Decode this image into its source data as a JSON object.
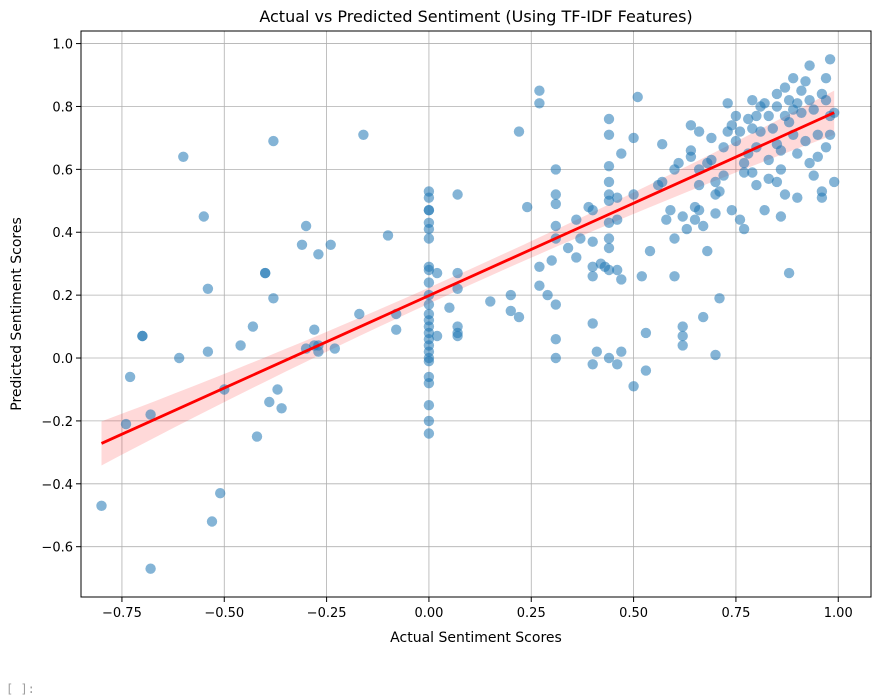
{
  "cell": {
    "prompt": "[ ]:"
  },
  "chart_data": {
    "type": "scatter",
    "title": "Actual vs Predicted Sentiment (Using TF-IDF Features)",
    "xlabel": "Actual Sentiment Scores",
    "ylabel": "Predicted Sentiment Scores",
    "xlim": [
      -0.85,
      1.08
    ],
    "ylim": [
      -0.76,
      1.04
    ],
    "xticks": [
      -0.75,
      -0.5,
      -0.25,
      0.0,
      0.25,
      0.5,
      0.75,
      1.0
    ],
    "xtick_labels": [
      "−0.75",
      "−0.50",
      "−0.25",
      "0.00",
      "0.25",
      "0.50",
      "0.75",
      "1.00"
    ],
    "yticks": [
      -0.6,
      -0.4,
      -0.2,
      0.0,
      0.2,
      0.4,
      0.6,
      0.8,
      1.0
    ],
    "ytick_labels": [
      "−0.6",
      "−0.4",
      "−0.2",
      "0.0",
      "0.2",
      "0.4",
      "0.6",
      "0.8",
      "1.0"
    ],
    "grid": true,
    "colors": {
      "points": "#1f77b4",
      "regression": "#ff0000",
      "band": "#ff0000"
    },
    "regression": {
      "slope": 0.5877,
      "intercept": 0.1985,
      "x_range": [
        -0.8,
        0.99
      ],
      "ci_half_width_ends": 0.07,
      "ci_half_width_center": 0.025
    },
    "points": [
      [
        -0.8,
        -0.47
      ],
      [
        -0.74,
        -0.21
      ],
      [
        -0.73,
        -0.06
      ],
      [
        -0.7,
        0.07
      ],
      [
        -0.7,
        0.07
      ],
      [
        -0.68,
        -0.18
      ],
      [
        -0.68,
        -0.67
      ],
      [
        -0.6,
        0.64
      ],
      [
        -0.61,
        0.0
      ],
      [
        -0.55,
        0.45
      ],
      [
        -0.54,
        0.22
      ],
      [
        -0.54,
        0.02
      ],
      [
        -0.51,
        -0.43
      ],
      [
        -0.53,
        -0.52
      ],
      [
        -0.5,
        -0.1
      ],
      [
        -0.46,
        0.04
      ],
      [
        -0.43,
        0.1
      ],
      [
        -0.42,
        -0.25
      ],
      [
        -0.4,
        0.27
      ],
      [
        -0.4,
        0.27
      ],
      [
        -0.39,
        -0.14
      ],
      [
        -0.38,
        0.19
      ],
      [
        -0.37,
        -0.1
      ],
      [
        -0.36,
        -0.16
      ],
      [
        -0.38,
        0.69
      ],
      [
        -0.31,
        0.36
      ],
      [
        -0.3,
        0.42
      ],
      [
        -0.3,
        0.03
      ],
      [
        -0.28,
        0.09
      ],
      [
        -0.27,
        0.02
      ],
      [
        -0.27,
        0.04
      ],
      [
        -0.28,
        0.04
      ],
      [
        -0.24,
        0.36
      ],
      [
        -0.23,
        0.03
      ],
      [
        -0.27,
        0.33
      ],
      [
        -0.17,
        0.14
      ],
      [
        -0.16,
        0.71
      ],
      [
        -0.1,
        0.39
      ],
      [
        -0.08,
        0.14
      ],
      [
        -0.08,
        0.09
      ],
      [
        0.0,
        0.53
      ],
      [
        0.0,
        0.51
      ],
      [
        0.0,
        0.47
      ],
      [
        0.0,
        0.47
      ],
      [
        0.0,
        0.43
      ],
      [
        0.0,
        0.41
      ],
      [
        0.0,
        0.38
      ],
      [
        0.0,
        0.29
      ],
      [
        0.0,
        0.28
      ],
      [
        0.0,
        0.24
      ],
      [
        0.0,
        0.2
      ],
      [
        0.0,
        0.17
      ],
      [
        0.0,
        0.14
      ],
      [
        0.0,
        0.12
      ],
      [
        0.0,
        0.1
      ],
      [
        0.0,
        0.08
      ],
      [
        0.0,
        0.06
      ],
      [
        0.0,
        0.04
      ],
      [
        0.0,
        0.02
      ],
      [
        0.0,
        0.0
      ],
      [
        0.0,
        -0.01
      ],
      [
        0.0,
        -0.06
      ],
      [
        0.0,
        -0.08
      ],
      [
        0.0,
        -0.15
      ],
      [
        0.0,
        -0.2
      ],
      [
        0.0,
        -0.24
      ],
      [
        0.02,
        0.07
      ],
      [
        0.02,
        0.27
      ],
      [
        0.05,
        0.16
      ],
      [
        0.07,
        0.52
      ],
      [
        0.07,
        0.27
      ],
      [
        0.07,
        0.22
      ],
      [
        0.07,
        0.1
      ],
      [
        0.07,
        0.08
      ],
      [
        0.07,
        0.07
      ],
      [
        0.15,
        0.18
      ],
      [
        0.2,
        0.2
      ],
      [
        0.2,
        0.15
      ],
      [
        0.22,
        0.13
      ],
      [
        0.24,
        0.48
      ],
      [
        0.22,
        0.72
      ],
      [
        0.27,
        0.85
      ],
      [
        0.27,
        0.81
      ],
      [
        0.27,
        0.29
      ],
      [
        0.27,
        0.23
      ],
      [
        0.29,
        0.2
      ],
      [
        0.3,
        0.31
      ],
      [
        0.31,
        0.6
      ],
      [
        0.31,
        0.52
      ],
      [
        0.31,
        0.49
      ],
      [
        0.31,
        0.42
      ],
      [
        0.31,
        0.38
      ],
      [
        0.31,
        0.17
      ],
      [
        0.31,
        0.06
      ],
      [
        0.31,
        0.0
      ],
      [
        0.34,
        0.35
      ],
      [
        0.36,
        0.32
      ],
      [
        0.37,
        0.38
      ],
      [
        0.36,
        0.44
      ],
      [
        0.39,
        0.48
      ],
      [
        0.4,
        0.47
      ],
      [
        0.4,
        0.37
      ],
      [
        0.4,
        0.29
      ],
      [
        0.4,
        0.26
      ],
      [
        0.4,
        0.11
      ],
      [
        0.41,
        0.02
      ],
      [
        0.4,
        -0.02
      ],
      [
        0.42,
        0.3
      ],
      [
        0.43,
        0.29
      ],
      [
        0.44,
        0.76
      ],
      [
        0.44,
        0.71
      ],
      [
        0.44,
        0.61
      ],
      [
        0.44,
        0.56
      ],
      [
        0.44,
        0.52
      ],
      [
        0.44,
        0.5
      ],
      [
        0.44,
        0.43
      ],
      [
        0.44,
        0.38
      ],
      [
        0.44,
        0.35
      ],
      [
        0.44,
        0.28
      ],
      [
        0.44,
        0.0
      ],
      [
        0.46,
        0.51
      ],
      [
        0.46,
        0.44
      ],
      [
        0.46,
        0.28
      ],
      [
        0.46,
        -0.02
      ],
      [
        0.47,
        0.25
      ],
      [
        0.47,
        0.65
      ],
      [
        0.47,
        0.02
      ],
      [
        0.5,
        0.7
      ],
      [
        0.5,
        0.52
      ],
      [
        0.51,
        0.83
      ],
      [
        0.5,
        -0.09
      ],
      [
        0.52,
        0.26
      ],
      [
        0.53,
        0.08
      ],
      [
        0.53,
        -0.04
      ],
      [
        0.54,
        0.34
      ],
      [
        0.56,
        0.55
      ],
      [
        0.57,
        0.56
      ],
      [
        0.57,
        0.68
      ],
      [
        0.58,
        0.44
      ],
      [
        0.59,
        0.47
      ],
      [
        0.6,
        0.6
      ],
      [
        0.6,
        0.38
      ],
      [
        0.6,
        0.26
      ],
      [
        0.61,
        0.62
      ],
      [
        0.62,
        0.45
      ],
      [
        0.62,
        0.07
      ],
      [
        0.62,
        0.1
      ],
      [
        0.62,
        0.04
      ],
      [
        0.63,
        0.41
      ],
      [
        0.64,
        0.64
      ],
      [
        0.64,
        0.74
      ],
      [
        0.64,
        0.66
      ],
      [
        0.65,
        0.44
      ],
      [
        0.65,
        0.48
      ],
      [
        0.66,
        0.72
      ],
      [
        0.66,
        0.6
      ],
      [
        0.66,
        0.55
      ],
      [
        0.66,
        0.47
      ],
      [
        0.67,
        0.42
      ],
      [
        0.67,
        0.13
      ],
      [
        0.68,
        0.62
      ],
      [
        0.68,
        0.34
      ],
      [
        0.69,
        0.7
      ],
      [
        0.69,
        0.63
      ],
      [
        0.7,
        0.56
      ],
      [
        0.7,
        0.46
      ],
      [
        0.7,
        0.52
      ],
      [
        0.71,
        0.19
      ],
      [
        0.7,
        0.01
      ],
      [
        0.71,
        0.53
      ],
      [
        0.72,
        0.67
      ],
      [
        0.72,
        0.58
      ],
      [
        0.73,
        0.72
      ],
      [
        0.73,
        0.81
      ],
      [
        0.74,
        0.74
      ],
      [
        0.74,
        0.47
      ],
      [
        0.75,
        0.77
      ],
      [
        0.75,
        0.69
      ],
      [
        0.76,
        0.44
      ],
      [
        0.77,
        0.62
      ],
      [
        0.77,
        0.41
      ],
      [
        0.77,
        0.59
      ],
      [
        0.78,
        0.65
      ],
      [
        0.78,
        0.76
      ],
      [
        0.79,
        0.82
      ],
      [
        0.79,
        0.59
      ],
      [
        0.8,
        0.77
      ],
      [
        0.8,
        0.67
      ],
      [
        0.8,
        0.55
      ],
      [
        0.81,
        0.72
      ],
      [
        0.82,
        0.81
      ],
      [
        0.82,
        0.47
      ],
      [
        0.83,
        0.63
      ],
      [
        0.83,
        0.57
      ],
      [
        0.84,
        0.73
      ],
      [
        0.85,
        0.84
      ],
      [
        0.85,
        0.68
      ],
      [
        0.85,
        0.56
      ],
      [
        0.86,
        0.6
      ],
      [
        0.86,
        0.45
      ],
      [
        0.86,
        0.66
      ],
      [
        0.87,
        0.77
      ],
      [
        0.87,
        0.52
      ],
      [
        0.88,
        0.82
      ],
      [
        0.88,
        0.75
      ],
      [
        0.88,
        0.27
      ],
      [
        0.89,
        0.89
      ],
      [
        0.89,
        0.79
      ],
      [
        0.89,
        0.71
      ],
      [
        0.9,
        0.65
      ],
      [
        0.9,
        0.51
      ],
      [
        0.91,
        0.85
      ],
      [
        0.91,
        0.78
      ],
      [
        0.92,
        0.69
      ],
      [
        0.93,
        0.62
      ],
      [
        0.93,
        0.93
      ],
      [
        0.94,
        0.79
      ],
      [
        0.94,
        0.58
      ],
      [
        0.95,
        0.71
      ],
      [
        0.95,
        0.64
      ],
      [
        0.96,
        0.84
      ],
      [
        0.96,
        0.51
      ],
      [
        0.97,
        0.67
      ],
      [
        0.97,
        0.89
      ],
      [
        0.98,
        0.77
      ],
      [
        0.98,
        0.71
      ],
      [
        0.98,
        0.95
      ],
      [
        0.99,
        0.56
      ],
      [
        0.99,
        0.78
      ],
      [
        0.97,
        0.82
      ],
      [
        0.96,
        0.53
      ],
      [
        0.92,
        0.88
      ],
      [
        0.93,
        0.82
      ],
      [
        0.9,
        0.81
      ],
      [
        0.87,
        0.86
      ],
      [
        0.85,
        0.8
      ],
      [
        0.83,
        0.77
      ],
      [
        0.81,
        0.8
      ],
      [
        0.79,
        0.73
      ],
      [
        0.76,
        0.72
      ]
    ]
  }
}
